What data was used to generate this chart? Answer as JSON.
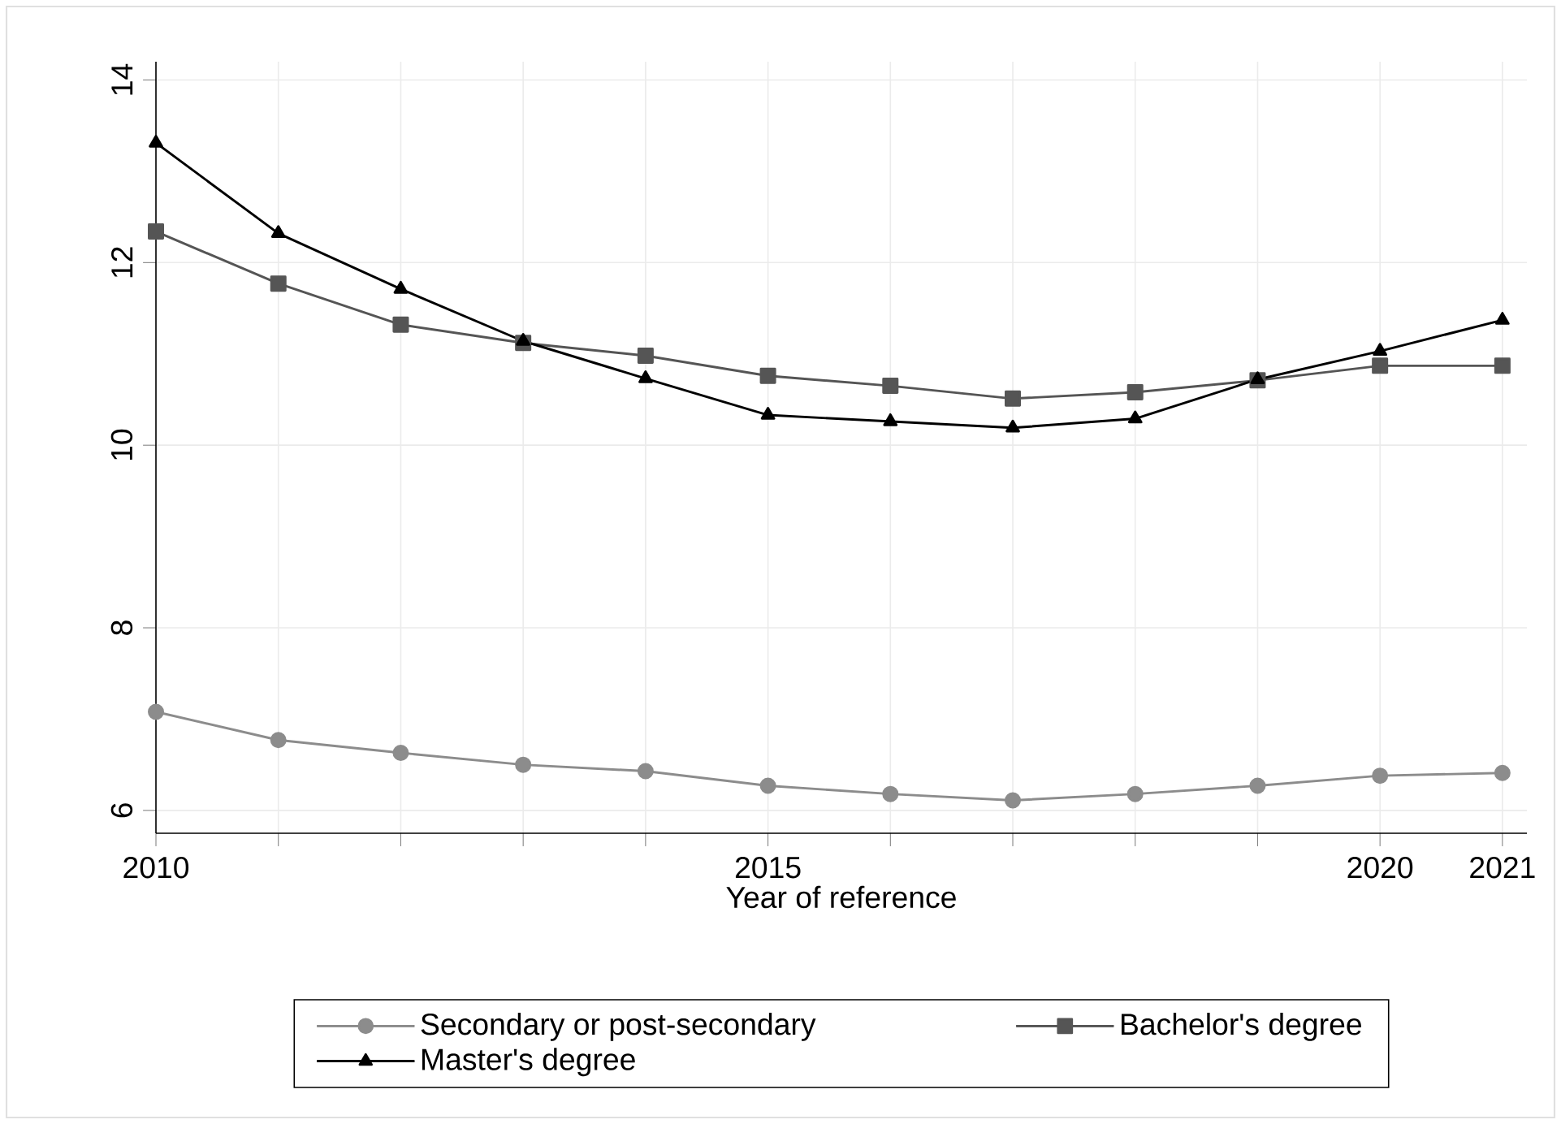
{
  "chart_data": {
    "type": "line",
    "xlabel": "Year of reference",
    "x": [
      2010,
      2011,
      2012,
      2013,
      2014,
      2015,
      2016,
      2017,
      2018,
      2019,
      2020,
      2021
    ],
    "series": [
      {
        "name": "Secondary or post-secondary",
        "color": "#8c8c8c",
        "marker": "circle",
        "values": [
          7.08,
          6.77,
          6.63,
          6.5,
          6.43,
          6.27,
          6.18,
          6.11,
          6.18,
          6.27,
          6.38,
          6.41
        ]
      },
      {
        "name": "Bachelor's degree",
        "color": "#555555",
        "marker": "square",
        "values": [
          12.34,
          11.77,
          11.32,
          11.12,
          10.98,
          10.76,
          10.65,
          10.51,
          10.58,
          10.71,
          10.87,
          10.87
        ]
      },
      {
        "name": "Master's degree",
        "color": "#000000",
        "marker": "triangle",
        "values": [
          13.31,
          12.32,
          11.71,
          11.14,
          10.73,
          10.33,
          10.26,
          10.19,
          10.29,
          10.72,
          11.03,
          11.37
        ]
      }
    ],
    "xlim": [
      2010,
      2021.2
    ],
    "ylim": [
      5.75,
      14.2
    ],
    "xticks": [
      2010,
      {
        "value": 2011,
        "label": null
      },
      {
        "value": 2012,
        "label": null
      },
      {
        "value": 2013,
        "label": null
      },
      {
        "value": 2014,
        "label": null
      },
      2015,
      {
        "value": 2016,
        "label": null
      },
      {
        "value": 2017,
        "label": null
      },
      {
        "value": 2018,
        "label": null
      },
      {
        "value": 2019,
        "label": null
      },
      2020,
      2021
    ],
    "yticks": [
      6,
      8,
      10,
      12,
      14
    ],
    "grid": true,
    "legend": "bottom",
    "line_style": "solid"
  }
}
